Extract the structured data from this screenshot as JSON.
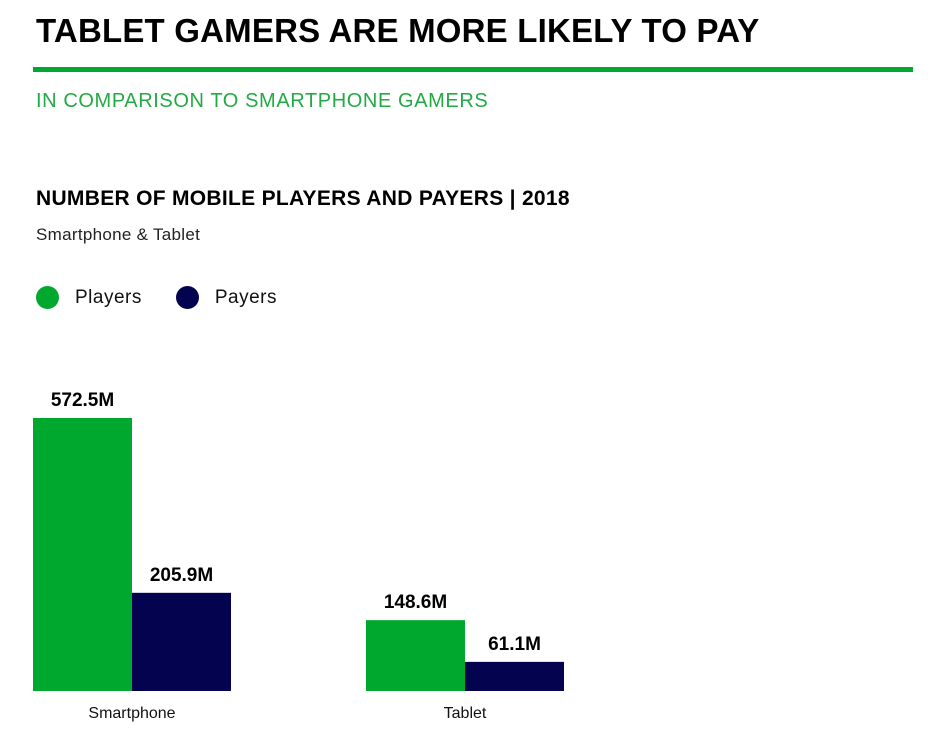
{
  "header": {
    "title": "TABLET GAMERS ARE MORE LIKELY TO PAY",
    "subtitle": "IN COMPARISON TO SMARTPHONE GAMERS"
  },
  "colors": {
    "accent": "#00a82d",
    "players": "#00a82d",
    "payers": "#03034f"
  },
  "chart_data": {
    "type": "bar",
    "title": "NUMBER OF MOBILE PLAYERS AND PAYERS | 2018",
    "subtitle": "Smartphone & Tablet",
    "categories": [
      "Smartphone",
      "Tablet"
    ],
    "series": [
      {
        "name": "Players",
        "values": [
          572.5,
          148.6
        ],
        "labels": [
          "572.5M",
          "148.6M"
        ],
        "color": "#00a82d"
      },
      {
        "name": "Payers",
        "values": [
          205.9,
          61.1
        ],
        "labels": [
          "205.9M",
          "61.1M"
        ],
        "color": "#03034f"
      }
    ],
    "unit": "M",
    "ylim": [
      0,
      572.5
    ],
    "grid": false,
    "legend_position": "top-left"
  }
}
